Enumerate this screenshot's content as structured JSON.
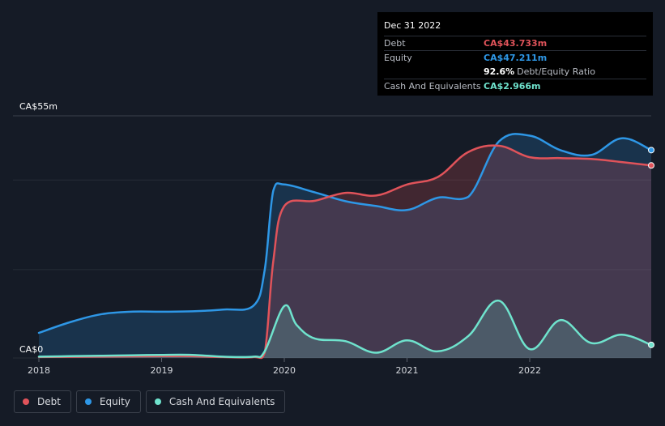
{
  "tooltip": {
    "date": "Dec 31 2022",
    "debt_label": "Debt",
    "debt_value": "CA$43.733m",
    "equity_label": "Equity",
    "equity_value": "CA$47.211m",
    "ratio_value": "92.6%",
    "ratio_label": "Debt/Equity Ratio",
    "cash_label": "Cash And Equivalents",
    "cash_value": "CA$2.966m"
  },
  "legend": {
    "debt": "Debt",
    "equity": "Equity",
    "cash": "Cash And Equivalents"
  },
  "colors": {
    "debt": "#e0535a",
    "equity": "#2e97e6",
    "cash": "#6fe3cd",
    "background": "#151b26"
  },
  "chart_data": {
    "type": "area",
    "title": "",
    "xlabel": "",
    "ylabel": "",
    "ylim": [
      0,
      55
    ],
    "y_tick_labels": [
      "CA$0",
      "CA$55m"
    ],
    "x_ticks": [
      2018,
      2019,
      2020,
      2021,
      2022
    ],
    "x_tick_labels": [
      "2018",
      "2019",
      "2020",
      "2021",
      "2022"
    ],
    "xlim": [
      2018.0,
      2022.99
    ],
    "series": [
      {
        "name": "Debt",
        "color_key": "debt",
        "x": [
          2018.0,
          2019.0,
          2019.25,
          2019.5,
          2019.75,
          2019.84,
          2019.91,
          2020.0,
          2020.25,
          2020.5,
          2020.75,
          2021.0,
          2021.25,
          2021.5,
          2021.75,
          2022.0,
          2022.25,
          2022.5,
          2022.75,
          2022.99
        ],
        "y": [
          0.2,
          0.4,
          0.4,
          0.2,
          0.2,
          1.2,
          22.0,
          34.5,
          35.7,
          37.5,
          36.9,
          39.4,
          41.1,
          46.8,
          48.2,
          45.6,
          45.4,
          45.2,
          44.5,
          43.73
        ]
      },
      {
        "name": "Equity",
        "color_key": "equity",
        "x": [
          2018.0,
          2018.25,
          2018.5,
          2018.75,
          2019.0,
          2019.25,
          2019.5,
          2019.75,
          2019.84,
          2019.91,
          2020.0,
          2020.25,
          2020.5,
          2020.75,
          2021.0,
          2021.25,
          2021.5,
          2021.75,
          2022.0,
          2022.25,
          2022.5,
          2022.75,
          2022.99
        ],
        "y": [
          5.7,
          8.1,
          9.9,
          10.5,
          10.5,
          10.6,
          11.0,
          11.9,
          20.0,
          38.0,
          39.4,
          37.6,
          35.6,
          34.5,
          33.6,
          36.4,
          36.6,
          49.2,
          50.5,
          47.2,
          46.1,
          49.9,
          47.21
        ]
      },
      {
        "name": "Cash And Equivalents",
        "color_key": "cash",
        "x": [
          2018.0,
          2018.25,
          2018.5,
          2018.75,
          2019.0,
          2019.25,
          2019.5,
          2019.75,
          2019.84,
          2020.0,
          2020.1,
          2020.25,
          2020.5,
          2020.75,
          2021.0,
          2021.25,
          2021.5,
          2021.75,
          2022.0,
          2022.25,
          2022.5,
          2022.75,
          2022.99
        ],
        "y": [
          0.3,
          0.4,
          0.5,
          0.6,
          0.7,
          0.7,
          0.3,
          0.3,
          1.5,
          11.8,
          7.5,
          4.4,
          3.8,
          1.2,
          4.0,
          1.5,
          5.0,
          13.0,
          2.0,
          8.6,
          3.4,
          5.3,
          2.97
        ]
      }
    ]
  }
}
